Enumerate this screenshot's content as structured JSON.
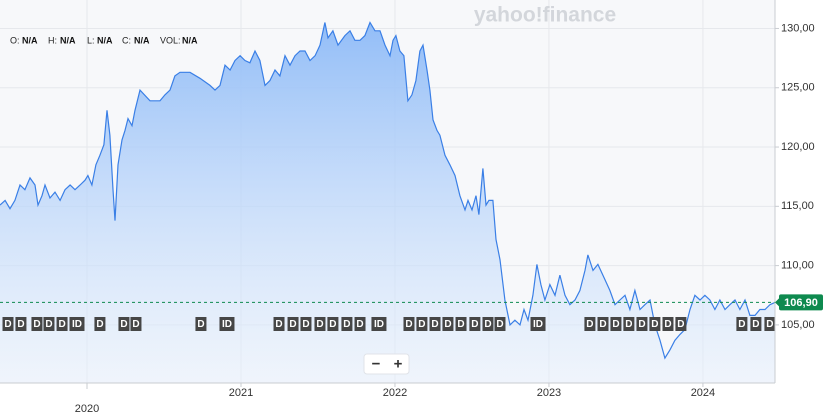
{
  "chart_data": {
    "type": "area",
    "watermark": "yahoo!finance",
    "legend": [
      {
        "label": "O:",
        "value": "N/A"
      },
      {
        "label": "H:",
        "value": "N/A"
      },
      {
        "label": "L:",
        "value": "N/A"
      },
      {
        "label": "C:",
        "value": "N/A"
      },
      {
        "label": "VOL:",
        "value": "N/A"
      }
    ],
    "zoom": [
      "−",
      "+"
    ],
    "color": "#3a7fe6",
    "last_price": {
      "value": 106.9,
      "label": "106,90"
    },
    "last_price_color": "#0e8a4f",
    "xlim": [
      2019.435,
      2024.468
    ],
    "xticks": [
      2020,
      2021,
      2022,
      2023,
      2024
    ],
    "ylim": [
      100.1,
      132.4
    ],
    "yticks": [
      {
        "value": 105,
        "label": "105,00"
      },
      {
        "value": 110,
        "label": "110,00"
      },
      {
        "value": 115,
        "label": "115,00"
      },
      {
        "value": 120,
        "label": "120,00"
      },
      {
        "value": 125,
        "label": "125,00"
      },
      {
        "value": 130,
        "label": "130,00"
      }
    ],
    "grid": true,
    "x": [
      2019.435,
      2019.468,
      2019.5,
      2019.532,
      2019.565,
      2019.597,
      2019.63,
      2019.662,
      2019.682,
      2019.708,
      2019.727,
      2019.76,
      2019.792,
      2019.825,
      2019.857,
      2019.89,
      2019.922,
      2019.955,
      2019.987,
      2020.006,
      2020.032,
      2020.058,
      2020.084,
      2020.11,
      2020.13,
      2020.149,
      2020.169,
      2020.182,
      2020.201,
      2020.227,
      2020.247,
      2020.266,
      2020.292,
      2020.312,
      2020.344,
      2020.409,
      2020.474,
      2020.506,
      2020.539,
      2020.571,
      2020.604,
      2020.636,
      2020.669,
      2020.734,
      2020.799,
      2020.831,
      2020.864,
      2020.896,
      2020.929,
      2020.961,
      2020.994,
      2021.026,
      2021.058,
      2021.091,
      2021.123,
      2021.156,
      2021.188,
      2021.221,
      2021.253,
      2021.286,
      2021.318,
      2021.351,
      2021.383,
      2021.416,
      2021.448,
      2021.481,
      2021.513,
      2021.545,
      2021.565,
      2021.597,
      2021.63,
      2021.675,
      2021.708,
      2021.74,
      2021.773,
      2021.805,
      2021.838,
      2021.87,
      2021.903,
      2021.935,
      2021.968,
      2021.987,
      2022.006,
      2022.032,
      2022.058,
      2022.084,
      2022.11,
      2022.136,
      2022.162,
      2022.182,
      2022.208,
      2022.227,
      2022.247,
      2022.273,
      2022.292,
      2022.325,
      2022.357,
      2022.39,
      2022.422,
      2022.455,
      2022.474,
      2022.5,
      2022.526,
      2022.545,
      2022.571,
      2022.591,
      2022.61,
      2022.636,
      2022.656,
      2022.682,
      2022.714,
      2022.747,
      2022.779,
      2022.812,
      2022.838,
      2022.864,
      2022.896,
      2022.922,
      2022.948,
      2022.974,
      2023.006,
      2023.039,
      2023.071,
      2023.104,
      2023.136,
      2023.169,
      2023.201,
      2023.234,
      2023.253,
      2023.286,
      2023.318,
      2023.364,
      2023.396,
      2023.429,
      2023.461,
      2023.494,
      2023.526,
      2023.558,
      2023.591,
      2023.623,
      2023.656,
      2023.688,
      2023.721,
      2023.753,
      2023.786,
      2023.818,
      2023.851,
      2023.883,
      2023.916,
      2023.948,
      2023.981,
      2024.013,
      2024.045,
      2024.078,
      2024.11,
      2024.143,
      2024.175,
      2024.208,
      2024.24,
      2024.273,
      2024.305,
      2024.338,
      2024.37,
      2024.403,
      2024.435,
      2024.468
    ],
    "values": [
      115.1,
      115.5,
      114.8,
      115.5,
      116.8,
      116.4,
      117.4,
      116.8,
      115.1,
      115.9,
      116.8,
      115.7,
      116.2,
      115.5,
      116.4,
      116.8,
      116.4,
      116.8,
      117.2,
      117.6,
      116.8,
      118.5,
      119.3,
      120.2,
      123.1,
      121.0,
      116.4,
      113.8,
      118.5,
      120.6,
      121.4,
      122.4,
      121.8,
      123.1,
      124.8,
      123.9,
      123.9,
      124.4,
      124.8,
      126.0,
      126.3,
      126.3,
      126.3,
      125.8,
      125.2,
      124.8,
      125.2,
      126.9,
      126.5,
      127.3,
      127.7,
      127.3,
      127.1,
      128.1,
      127.3,
      125.2,
      125.6,
      126.5,
      126.0,
      127.7,
      126.9,
      127.7,
      128.1,
      128.1,
      127.3,
      127.7,
      128.6,
      130.5,
      129.2,
      129.8,
      128.6,
      129.4,
      129.8,
      129.0,
      129.0,
      129.4,
      130.5,
      129.8,
      129.8,
      128.6,
      127.7,
      129.0,
      129.4,
      128.1,
      127.7,
      123.9,
      124.4,
      125.6,
      128.1,
      128.6,
      126.5,
      124.8,
      122.3,
      121.4,
      121.0,
      119.3,
      118.5,
      117.6,
      115.9,
      114.7,
      115.5,
      114.7,
      115.9,
      114.3,
      118.2,
      115.1,
      115.5,
      115.5,
      112.2,
      110.5,
      107.1,
      105.0,
      105.4,
      105.0,
      106.3,
      105.4,
      107.5,
      110.1,
      108.4,
      107.1,
      108.4,
      107.5,
      109.2,
      107.5,
      106.7,
      107.1,
      107.9,
      109.6,
      110.9,
      109.6,
      110.1,
      108.8,
      107.9,
      106.7,
      107.1,
      107.5,
      106.3,
      107.9,
      106.3,
      106.7,
      107.1,
      105.0,
      103.7,
      102.2,
      102.9,
      103.7,
      104.2,
      104.6,
      106.3,
      107.5,
      107.1,
      107.5,
      107.1,
      106.3,
      107.1,
      106.3,
      106.7,
      107.1,
      106.3,
      107.1,
      105.8,
      105.8,
      106.3,
      106.3,
      106.7,
      106.9
    ],
    "events": [
      {
        "x": 2019.487,
        "label": "D"
      },
      {
        "x": 2019.571,
        "label": "D"
      },
      {
        "x": 2019.675,
        "label": "D"
      },
      {
        "x": 2019.753,
        "label": "D"
      },
      {
        "x": 2019.838,
        "label": "D"
      },
      {
        "x": 2019.935,
        "label": "ID"
      },
      {
        "x": 2020.084,
        "label": "D"
      },
      {
        "x": 2020.24,
        "label": "D"
      },
      {
        "x": 2020.318,
        "label": "D"
      },
      {
        "x": 2020.74,
        "label": "D"
      },
      {
        "x": 2020.909,
        "label": "ID"
      },
      {
        "x": 2021.247,
        "label": "D"
      },
      {
        "x": 2021.338,
        "label": "D"
      },
      {
        "x": 2021.422,
        "label": "D"
      },
      {
        "x": 2021.513,
        "label": "D"
      },
      {
        "x": 2021.597,
        "label": "D"
      },
      {
        "x": 2021.688,
        "label": "D"
      },
      {
        "x": 2021.773,
        "label": "D"
      },
      {
        "x": 2021.896,
        "label": "ID"
      },
      {
        "x": 2022.091,
        "label": "D"
      },
      {
        "x": 2022.175,
        "label": "D"
      },
      {
        "x": 2022.26,
        "label": "D"
      },
      {
        "x": 2022.344,
        "label": "D"
      },
      {
        "x": 2022.429,
        "label": "D"
      },
      {
        "x": 2022.519,
        "label": "D"
      },
      {
        "x": 2022.604,
        "label": "D"
      },
      {
        "x": 2022.682,
        "label": "D"
      },
      {
        "x": 2022.929,
        "label": "ID"
      },
      {
        "x": 2023.266,
        "label": "D"
      },
      {
        "x": 2023.351,
        "label": "D"
      },
      {
        "x": 2023.435,
        "label": "D"
      },
      {
        "x": 2023.519,
        "label": "D"
      },
      {
        "x": 2023.604,
        "label": "D"
      },
      {
        "x": 2023.688,
        "label": "D"
      },
      {
        "x": 2023.773,
        "label": "D"
      },
      {
        "x": 2023.857,
        "label": "D"
      },
      {
        "x": 2024.253,
        "label": "D"
      },
      {
        "x": 2024.344,
        "label": "D"
      },
      {
        "x": 2024.435,
        "label": "D"
      }
    ]
  }
}
